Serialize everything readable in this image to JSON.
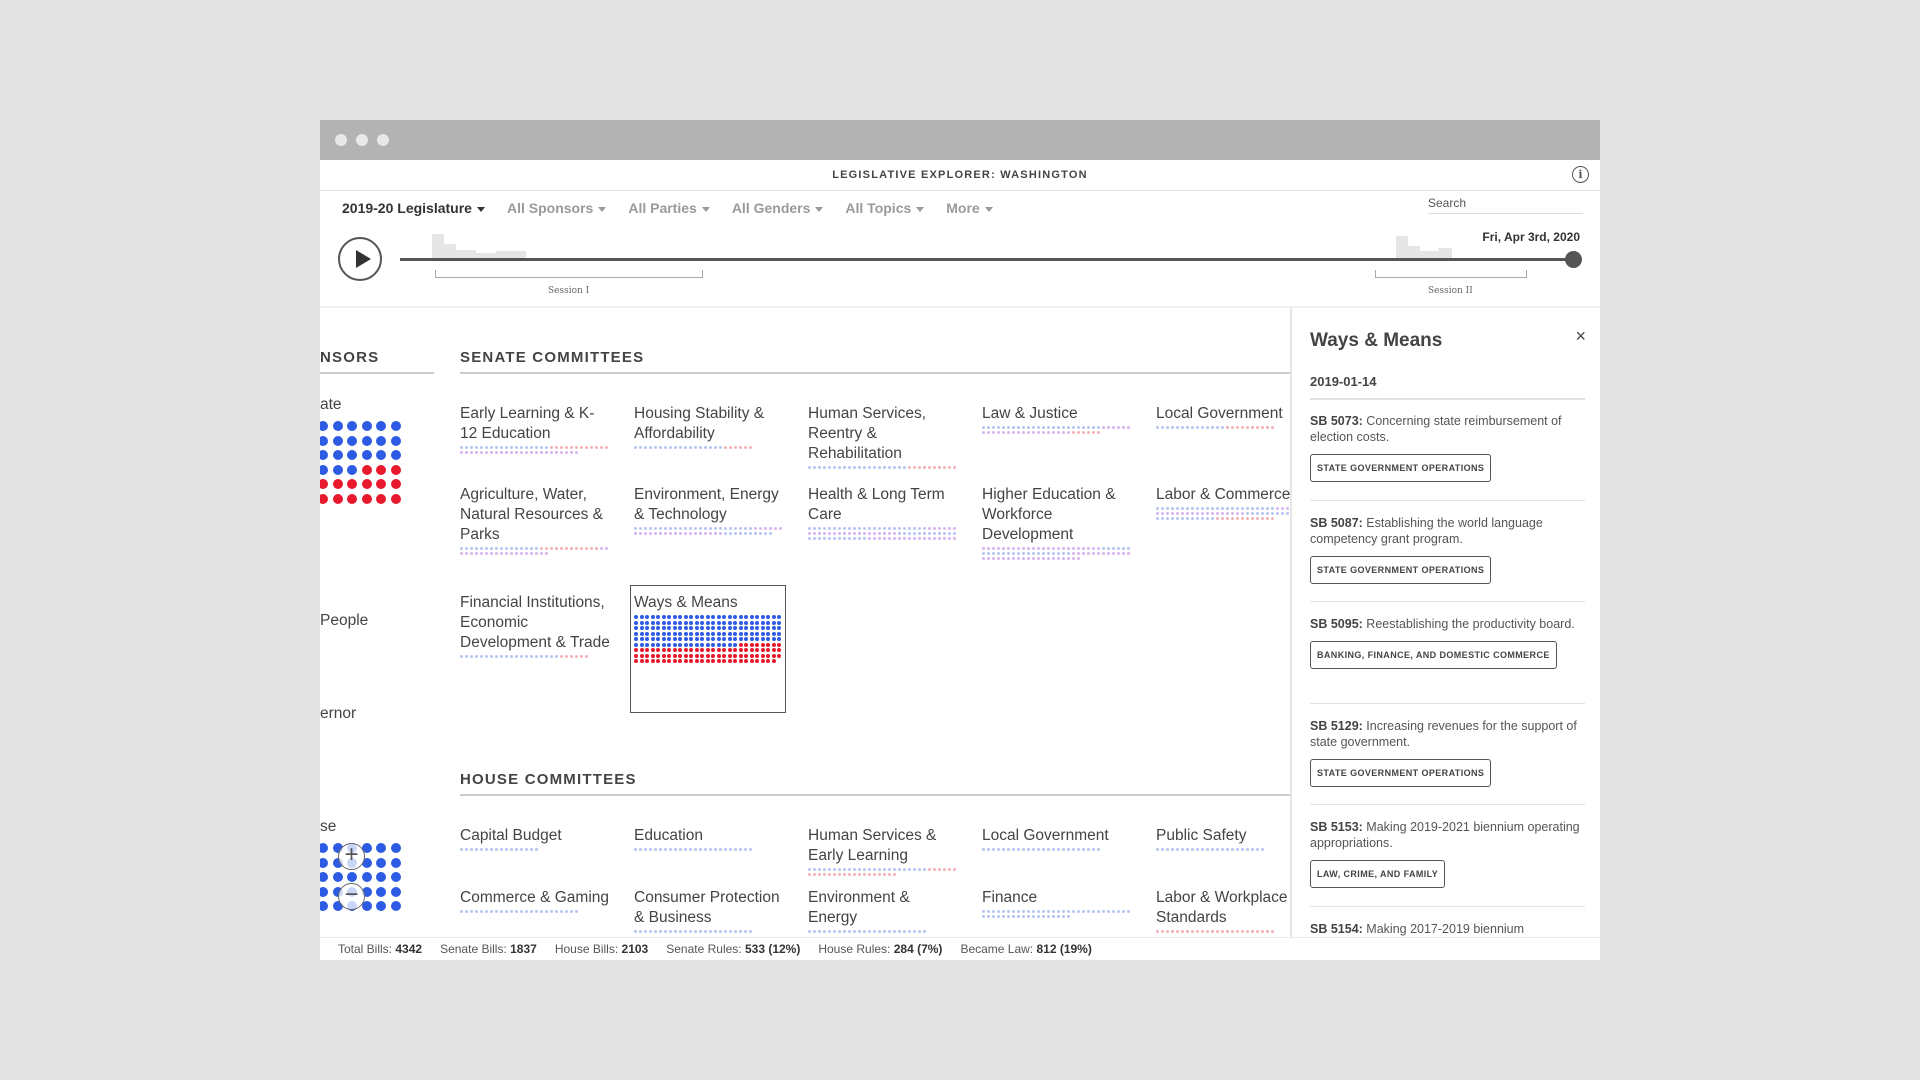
{
  "window": {
    "title": "LEGISLATIVE EXPLORER: WASHINGTON"
  },
  "filters": [
    {
      "label": "2019-20 Legislature"
    },
    {
      "label": "All Sponsors"
    },
    {
      "label": "All Parties"
    },
    {
      "label": "All Genders"
    },
    {
      "label": "All Topics"
    },
    {
      "label": "More"
    }
  ],
  "search": {
    "placeholder": "Search"
  },
  "timeline": {
    "current_date": "Fri, Apr 3rd, 2020",
    "session_1": "Session I",
    "session_2": "Session II",
    "progress": 1.0
  },
  "sponsors": {
    "header": "NSORS",
    "labels": [
      "ate",
      "People",
      "ernor",
      "se"
    ]
  },
  "senate": {
    "header": "SENATE COMMITTEES",
    "committees": [
      "Early Learning & K-12 Education",
      "Housing Stability & Affordability",
      "Human Services, Reentry & Rehabilitation",
      "Law & Justice",
      "Local Government",
      "Agriculture, Water, Natural Resources & Parks",
      "Environment, Energy & Technology",
      "Health & Long Term Care",
      "Higher Education & Workforce Development",
      "Labor & Commerce",
      "Financial Institutions, Economic Development & Trade",
      "Ways & Means"
    ]
  },
  "house": {
    "header": "HOUSE COMMITTEES",
    "committees": [
      "Capital Budget",
      "Education",
      "Human Services & Early Learning",
      "Local Government",
      "Public Safety",
      "Commerce & Gaming",
      "Consumer Protection & Business",
      "Environment & Energy",
      "Finance",
      "Labor & Workplace Standards"
    ]
  },
  "panel": {
    "title": "Ways & Means",
    "close": "×",
    "date": "2019-01-14",
    "bills": [
      {
        "id": "SB 5073:",
        "text": "Concerning state reimbursement of election costs.",
        "tag": "STATE GOVERNMENT OPERATIONS"
      },
      {
        "id": "SB 5087:",
        "text": "Establishing the world language competency grant program.",
        "tag": "STATE GOVERNMENT OPERATIONS"
      },
      {
        "id": "SB 5095:",
        "text": "Reestablishing the productivity board.",
        "tag": "BANKING, FINANCE, AND DOMESTIC COMMERCE"
      },
      {
        "id": "SB 5129:",
        "text": "Increasing revenues for the support of state government.",
        "tag": "STATE GOVERNMENT OPERATIONS"
      },
      {
        "id": "SB 5153:",
        "text": "Making 2019-2021 biennium operating appropriations.",
        "tag": "LAW, CRIME, AND FAMILY"
      },
      {
        "id": "SB 5154:",
        "text": "Making 2017-2019 biennium",
        "tag": ""
      }
    ]
  },
  "footer": {
    "total_label": "Total Bills:",
    "total": "4342",
    "senate_label": "Senate Bills:",
    "senate": "1837",
    "house_label": "House Bills:",
    "house": "2103",
    "srules_label": "Senate Rules:",
    "srules": "533 (12%)",
    "hrules_label": "House Rules:",
    "hrules": "284 (7%)",
    "law_label": "Became Law:",
    "law": "812 (19%)"
  },
  "colors": {
    "dem": "#2d5be3",
    "rep": "#e8192c",
    "dem_light": "#b7c6f2",
    "rep_light": "#f4b2b8",
    "purple_light": "#d9b6ef"
  }
}
